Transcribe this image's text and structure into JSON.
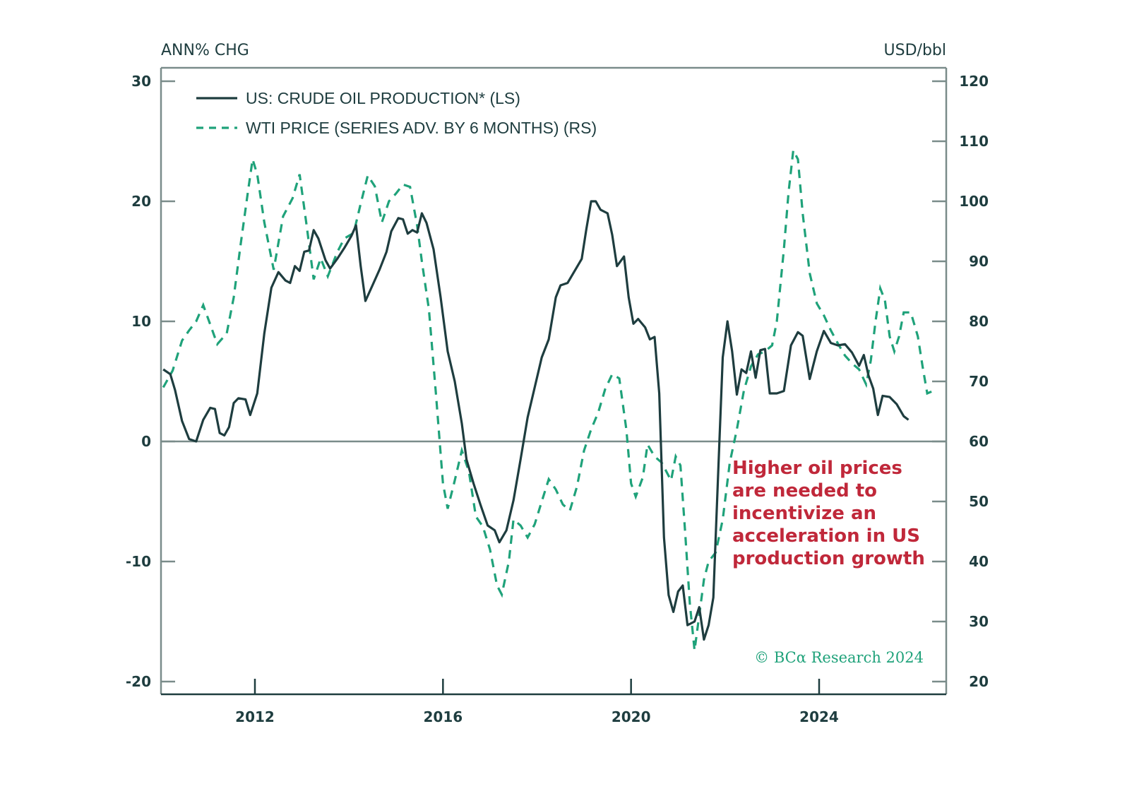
{
  "chart_data": {
    "type": "line",
    "title": "",
    "left_axis_label": "ANN% CHG",
    "right_axis_label": "USD/bbl",
    "xlabel": "",
    "x_range": [
      2010.0,
      2026.7
    ],
    "x_ticks": [
      2012,
      2016,
      2020,
      2024
    ],
    "x_tick_labels": [
      "2012",
      "2016",
      "2020",
      "2024"
    ],
    "ylim_left": [
      -20,
      30
    ],
    "y_ticks_left": [
      30,
      20,
      10,
      0,
      -10,
      -20
    ],
    "y_tick_labels_left": [
      "30",
      "20",
      "10",
      "0",
      "-10",
      "-20"
    ],
    "ylim_right": [
      20,
      120
    ],
    "y_ticks_right": [
      120,
      110,
      100,
      90,
      80,
      70,
      60,
      50,
      40,
      30,
      20
    ],
    "y_tick_labels_right": [
      "120",
      "110",
      "100",
      "90",
      "80",
      "70",
      "60",
      "50",
      "40",
      "30",
      "20"
    ],
    "zero_line_left": 0,
    "grid": false,
    "legend_position": "top-left",
    "series": [
      {
        "name": "US: CRUDE OIL PRODUCTION* (LS)",
        "axis": "left",
        "style": "solid",
        "color": "#1e3d3f",
        "points": [
          [
            2010.05,
            6.0
          ],
          [
            2010.2,
            5.6
          ],
          [
            2010.3,
            4.3
          ],
          [
            2010.45,
            1.7
          ],
          [
            2010.6,
            0.2
          ],
          [
            2010.75,
            0.0
          ],
          [
            2010.9,
            1.8
          ],
          [
            2011.05,
            2.8
          ],
          [
            2011.15,
            2.7
          ],
          [
            2011.25,
            0.7
          ],
          [
            2011.35,
            0.5
          ],
          [
            2011.45,
            1.2
          ],
          [
            2011.55,
            3.2
          ],
          [
            2011.65,
            3.6
          ],
          [
            2011.8,
            3.5
          ],
          [
            2011.9,
            2.2
          ],
          [
            2012.05,
            4.0
          ],
          [
            2012.2,
            9.0
          ],
          [
            2012.35,
            12.8
          ],
          [
            2012.5,
            14.1
          ],
          [
            2012.65,
            13.4
          ],
          [
            2012.75,
            13.2
          ],
          [
            2012.85,
            14.6
          ],
          [
            2012.95,
            14.2
          ],
          [
            2013.05,
            15.8
          ],
          [
            2013.15,
            15.9
          ],
          [
            2013.25,
            17.6
          ],
          [
            2013.35,
            16.9
          ],
          [
            2013.5,
            15.1
          ],
          [
            2013.6,
            14.4
          ],
          [
            2013.75,
            15.2
          ],
          [
            2013.9,
            16.1
          ],
          [
            2014.05,
            17.1
          ],
          [
            2014.15,
            18.0
          ],
          [
            2014.25,
            14.6
          ],
          [
            2014.35,
            11.7
          ],
          [
            2014.5,
            13.0
          ],
          [
            2014.65,
            14.3
          ],
          [
            2014.8,
            15.8
          ],
          [
            2014.9,
            17.5
          ],
          [
            2015.05,
            18.6
          ],
          [
            2015.15,
            18.5
          ],
          [
            2015.25,
            17.3
          ],
          [
            2015.35,
            17.6
          ],
          [
            2015.45,
            17.4
          ],
          [
            2015.55,
            19.0
          ],
          [
            2015.65,
            18.2
          ],
          [
            2015.8,
            16.0
          ],
          [
            2015.95,
            12.0
          ],
          [
            2016.1,
            7.5
          ],
          [
            2016.25,
            5.0
          ],
          [
            2016.4,
            1.5
          ],
          [
            2016.5,
            -1.5
          ],
          [
            2016.65,
            -3.5
          ],
          [
            2016.8,
            -5.3
          ],
          [
            2016.95,
            -7.0
          ],
          [
            2017.1,
            -7.4
          ],
          [
            2017.2,
            -8.4
          ],
          [
            2017.35,
            -7.4
          ],
          [
            2017.5,
            -4.9
          ],
          [
            2017.65,
            -1.5
          ],
          [
            2017.8,
            2.0
          ],
          [
            2017.95,
            4.5
          ],
          [
            2018.1,
            7.0
          ],
          [
            2018.25,
            8.5
          ],
          [
            2018.4,
            12.0
          ],
          [
            2018.5,
            13.0
          ],
          [
            2018.65,
            13.2
          ],
          [
            2018.8,
            14.2
          ],
          [
            2018.95,
            15.2
          ],
          [
            2019.05,
            17.7
          ],
          [
            2019.15,
            20.0
          ],
          [
            2019.25,
            20.0
          ],
          [
            2019.35,
            19.3
          ],
          [
            2019.5,
            19.0
          ],
          [
            2019.6,
            17.2
          ],
          [
            2019.7,
            14.6
          ],
          [
            2019.85,
            15.4
          ],
          [
            2019.95,
            12.0
          ],
          [
            2020.05,
            9.8
          ],
          [
            2020.15,
            10.2
          ],
          [
            2020.3,
            9.5
          ],
          [
            2020.4,
            8.5
          ],
          [
            2020.5,
            8.7
          ],
          [
            2020.6,
            4.0
          ],
          [
            2020.7,
            -8.0
          ],
          [
            2020.8,
            -12.8
          ],
          [
            2020.9,
            -14.2
          ],
          [
            2021.0,
            -12.5
          ],
          [
            2021.1,
            -12.0
          ],
          [
            2021.2,
            -15.3
          ],
          [
            2021.35,
            -15.0
          ],
          [
            2021.45,
            -13.8
          ],
          [
            2021.55,
            -16.5
          ],
          [
            2021.65,
            -15.3
          ],
          [
            2021.75,
            -13.0
          ],
          [
            2021.85,
            -3.0
          ],
          [
            2021.95,
            7.0
          ],
          [
            2022.05,
            10.0
          ],
          [
            2022.15,
            7.5
          ],
          [
            2022.25,
            3.9
          ],
          [
            2022.35,
            6.0
          ],
          [
            2022.45,
            5.7
          ],
          [
            2022.55,
            7.5
          ],
          [
            2022.65,
            5.3
          ],
          [
            2022.75,
            7.6
          ],
          [
            2022.85,
            7.7
          ],
          [
            2022.95,
            4.0
          ],
          [
            2023.1,
            4.0
          ],
          [
            2023.25,
            4.2
          ],
          [
            2023.4,
            8.0
          ],
          [
            2023.55,
            9.1
          ],
          [
            2023.65,
            8.8
          ],
          [
            2023.8,
            5.2
          ],
          [
            2023.95,
            7.5
          ],
          [
            2024.1,
            9.2
          ],
          [
            2024.25,
            8.2
          ],
          [
            2024.4,
            8.0
          ],
          [
            2024.55,
            8.1
          ],
          [
            2024.7,
            7.4
          ],
          [
            2024.85,
            6.3
          ],
          [
            2024.95,
            7.2
          ],
          [
            2025.05,
            5.5
          ],
          [
            2025.15,
            4.4
          ],
          [
            2025.25,
            2.2
          ],
          [
            2025.35,
            3.8
          ],
          [
            2025.5,
            3.7
          ],
          [
            2025.65,
            3.1
          ],
          [
            2025.8,
            2.1
          ],
          [
            2025.9,
            1.8
          ]
        ]
      },
      {
        "name": "WTI PRICE (SERIES ADV. BY 6 MONTHS) (RS)",
        "axis": "right",
        "style": "dashed",
        "color": "#1fa27a",
        "points": [
          [
            2010.05,
            69.0
          ],
          [
            2010.25,
            71.8
          ],
          [
            2010.45,
            76.8
          ],
          [
            2010.6,
            78.5
          ],
          [
            2010.75,
            80.0
          ],
          [
            2010.9,
            82.7
          ],
          [
            2011.05,
            79.5
          ],
          [
            2011.2,
            76.2
          ],
          [
            2011.4,
            78.0
          ],
          [
            2011.55,
            84.0
          ],
          [
            2011.7,
            93.0
          ],
          [
            2011.85,
            101.5
          ],
          [
            2011.95,
            107.0
          ],
          [
            2012.05,
            104.5
          ],
          [
            2012.2,
            96.5
          ],
          [
            2012.4,
            88.6
          ],
          [
            2012.6,
            97.5
          ],
          [
            2012.8,
            100.5
          ],
          [
            2012.95,
            104.5
          ],
          [
            2013.1,
            96.0
          ],
          [
            2013.25,
            87.0
          ],
          [
            2013.4,
            90.5
          ],
          [
            2013.55,
            87.5
          ],
          [
            2013.75,
            91.5
          ],
          [
            2013.9,
            93.8
          ],
          [
            2014.1,
            94.7
          ],
          [
            2014.25,
            99.6
          ],
          [
            2014.4,
            104.3
          ],
          [
            2014.55,
            102.5
          ],
          [
            2014.7,
            96.5
          ],
          [
            2014.85,
            100.0
          ],
          [
            2015.0,
            101.3
          ],
          [
            2015.15,
            102.8
          ],
          [
            2015.3,
            102.4
          ],
          [
            2015.45,
            96.0
          ],
          [
            2015.55,
            90.0
          ],
          [
            2015.7,
            82.0
          ],
          [
            2015.85,
            68.0
          ],
          [
            2016.0,
            53.0
          ],
          [
            2016.1,
            48.8
          ],
          [
            2016.25,
            53.5
          ],
          [
            2016.4,
            58.5
          ],
          [
            2016.55,
            55.0
          ],
          [
            2016.7,
            47.5
          ],
          [
            2016.85,
            45.8
          ],
          [
            2017.0,
            42.0
          ],
          [
            2017.15,
            36.0
          ],
          [
            2017.25,
            34.5
          ],
          [
            2017.4,
            40.0
          ],
          [
            2017.5,
            47.0
          ],
          [
            2017.65,
            46.0
          ],
          [
            2017.8,
            44.0
          ],
          [
            2017.95,
            46.2
          ],
          [
            2018.1,
            50.0
          ],
          [
            2018.25,
            53.7
          ],
          [
            2018.4,
            52.0
          ],
          [
            2018.55,
            49.5
          ],
          [
            2018.7,
            48.5
          ],
          [
            2018.85,
            52.5
          ],
          [
            2019.0,
            58.5
          ],
          [
            2019.15,
            62.0
          ],
          [
            2019.3,
            64.8
          ],
          [
            2019.45,
            68.7
          ],
          [
            2019.6,
            71.2
          ],
          [
            2019.75,
            70.5
          ],
          [
            2019.9,
            62.0
          ],
          [
            2020.0,
            53.0
          ],
          [
            2020.1,
            50.8
          ],
          [
            2020.25,
            54.0
          ],
          [
            2020.35,
            59.5
          ],
          [
            2020.5,
            57.5
          ],
          [
            2020.65,
            56.5
          ],
          [
            2020.75,
            55.0
          ],
          [
            2020.85,
            53.5
          ],
          [
            2020.95,
            57.5
          ],
          [
            2021.05,
            56.0
          ],
          [
            2021.15,
            45.0
          ],
          [
            2021.25,
            33.0
          ],
          [
            2021.35,
            25.2
          ],
          [
            2021.45,
            31.0
          ],
          [
            2021.55,
            37.0
          ],
          [
            2021.65,
            40.0
          ],
          [
            2021.8,
            41.5
          ],
          [
            2021.95,
            47.0
          ],
          [
            2022.1,
            56.5
          ],
          [
            2022.25,
            62.0
          ],
          [
            2022.4,
            68.5
          ],
          [
            2022.55,
            72.5
          ],
          [
            2022.7,
            74.5
          ],
          [
            2022.85,
            75.0
          ],
          [
            2023.0,
            76.0
          ],
          [
            2023.1,
            80.0
          ],
          [
            2023.25,
            92.0
          ],
          [
            2023.35,
            101.5
          ],
          [
            2023.45,
            108.5
          ],
          [
            2023.55,
            107.0
          ],
          [
            2023.65,
            98.0
          ],
          [
            2023.8,
            88.0
          ],
          [
            2023.95,
            83.0
          ],
          [
            2024.1,
            81.0
          ],
          [
            2024.25,
            78.5
          ],
          [
            2024.4,
            76.3
          ],
          [
            2024.55,
            74.3
          ],
          [
            2024.7,
            73.0
          ],
          [
            2024.85,
            72.0
          ],
          [
            2025.0,
            69.5
          ],
          [
            2025.1,
            73.5
          ],
          [
            2025.2,
            80.0
          ],
          [
            2025.3,
            85.5
          ],
          [
            2025.4,
            83.5
          ],
          [
            2025.5,
            77.5
          ],
          [
            2025.6,
            75.0
          ],
          [
            2025.7,
            77.5
          ],
          [
            2025.8,
            81.5
          ],
          [
            2025.95,
            81.5
          ],
          [
            2026.1,
            77.5
          ],
          [
            2026.2,
            72.5
          ],
          [
            2026.3,
            68.0
          ],
          [
            2026.45,
            68.5
          ]
        ]
      }
    ],
    "annotation": {
      "lines": [
        "Higher oil prices",
        "are needed to",
        "incentivize an",
        "acceleration in US",
        "production growth"
      ],
      "color": "#c0283a"
    },
    "credit": "© BCα Research 2024"
  },
  "colors": {
    "axis": "#7a8c8a",
    "text": "#1e3d3f",
    "production_line": "#1e3d3f",
    "wti_line": "#1fa27a",
    "annotation": "#c0283a",
    "credit": "#1fa27a"
  }
}
